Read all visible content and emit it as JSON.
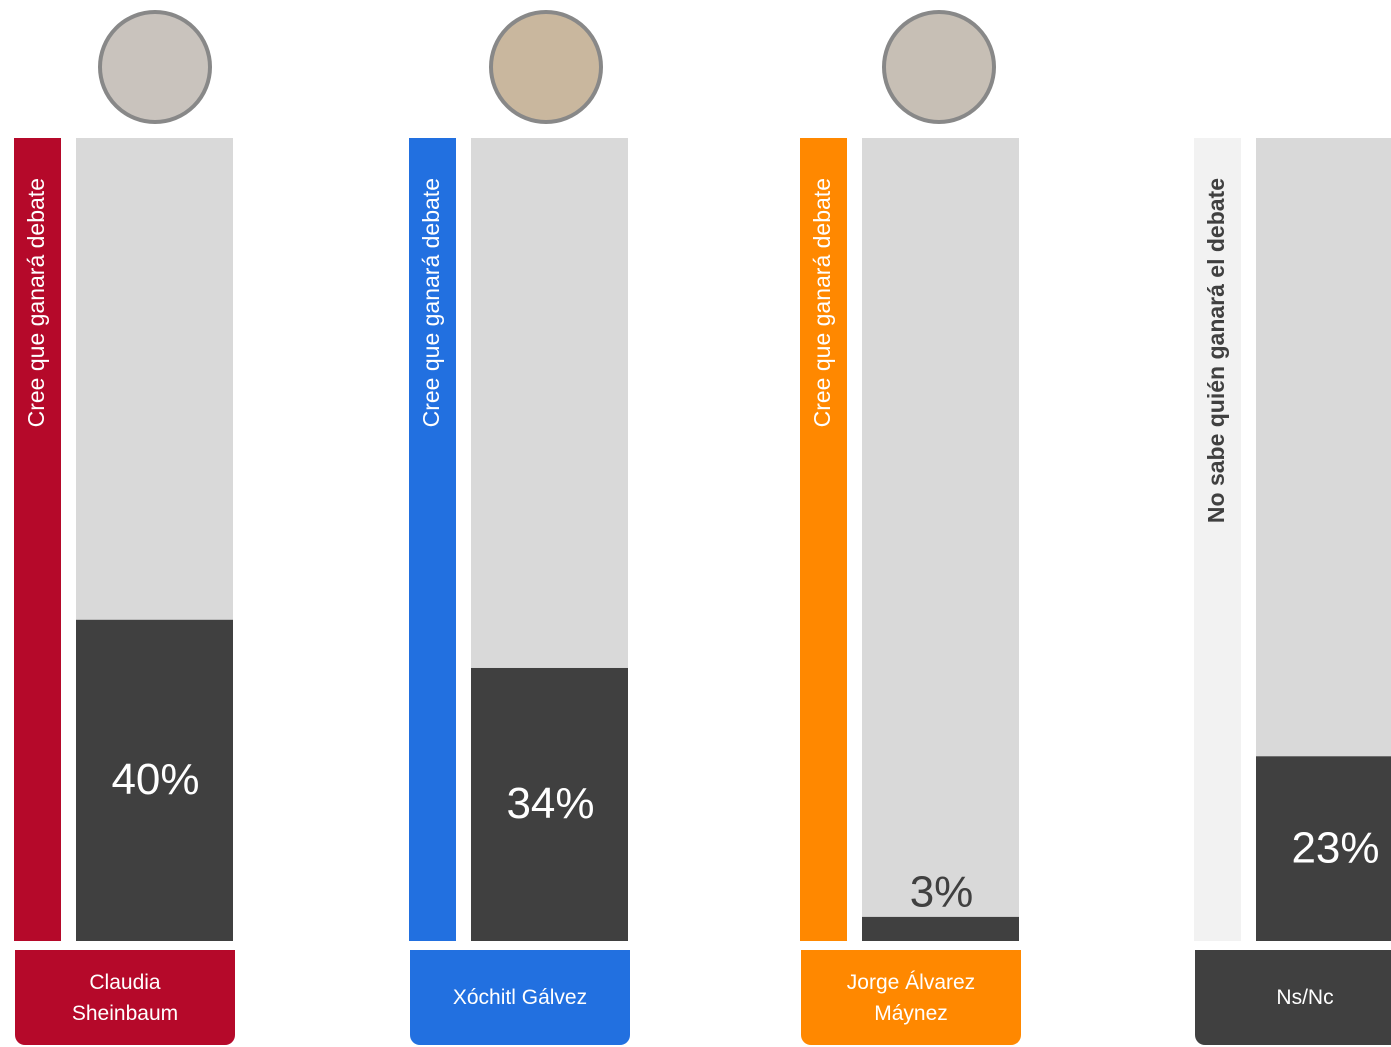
{
  "chart_data": {
    "type": "bar",
    "categories": [
      "Claudia Sheinbaum",
      "Xóchitl Gálvez",
      "Jorge Álvarez Máynez",
      "Ns/Nc"
    ],
    "side_labels": [
      "Cree que ganará debate",
      "Cree que ganará debate",
      "Cree que ganará debate",
      "No sabe quién ganará el debate"
    ],
    "values": [
      40,
      34,
      3,
      23
    ],
    "value_labels": [
      "40%",
      "34%",
      "3%",
      "23%"
    ],
    "colors": [
      "#b5092a",
      "#2270e0",
      "#ff8800",
      "#f2f2f2"
    ],
    "label_box_colors": [
      "#b5092a",
      "#2270e0",
      "#ff8800",
      "#404040"
    ],
    "bar_color": "#404040",
    "track_color": "#d9d9d9",
    "ylim": [
      0,
      100
    ]
  }
}
